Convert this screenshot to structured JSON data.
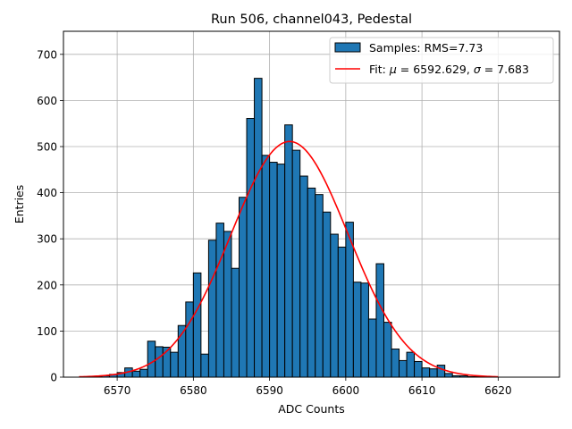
{
  "chart_data": {
    "type": "bar",
    "title": "Run 506, channel043, Pedestal",
    "xlabel": "ADC Counts",
    "ylabel": "Entries",
    "xlim": [
      6562.95,
      6628.05
    ],
    "ylim": [
      0,
      750
    ],
    "grid": true,
    "legend_placement": "top-right",
    "x_ticks": [
      6570,
      6580,
      6590,
      6600,
      6610,
      6620
    ],
    "y_ticks": [
      0,
      100,
      200,
      300,
      400,
      500,
      600,
      700
    ],
    "bin_width": 1,
    "bin_start": 6565,
    "counts": [
      0,
      1,
      2,
      3,
      6,
      10,
      20,
      13,
      17,
      78,
      66,
      65,
      54,
      112,
      163,
      226,
      50,
      297,
      334,
      316,
      236,
      390,
      561,
      648,
      481,
      466,
      462,
      547,
      492,
      436,
      410,
      396,
      358,
      310,
      282,
      336,
      206,
      204,
      126,
      246,
      119,
      61,
      36,
      54,
      34,
      20,
      18,
      26,
      8,
      3,
      3,
      1,
      1,
      1
    ],
    "series": [
      {
        "name": "Samples: RMS=7.73",
        "kind": "histogram",
        "color": "#1f77b4",
        "edgecolor": "#000000"
      },
      {
        "name": "Fit: μ = 6592.629, σ = 7.683",
        "kind": "gaussian-fit",
        "color": "#ff0000",
        "mu": 6592.629,
        "sigma": 7.683,
        "amplitude": 511,
        "x_range": [
          6565,
          6620
        ]
      }
    ]
  },
  "legend": {
    "samples_label": "Samples: RMS=7.73",
    "fit_prefix": "Fit: ",
    "fit_mu_symbol": "μ",
    "fit_mu_value": " = 6592.629, ",
    "fit_sigma_symbol": "σ",
    "fit_sigma_value": " = 7.683"
  }
}
